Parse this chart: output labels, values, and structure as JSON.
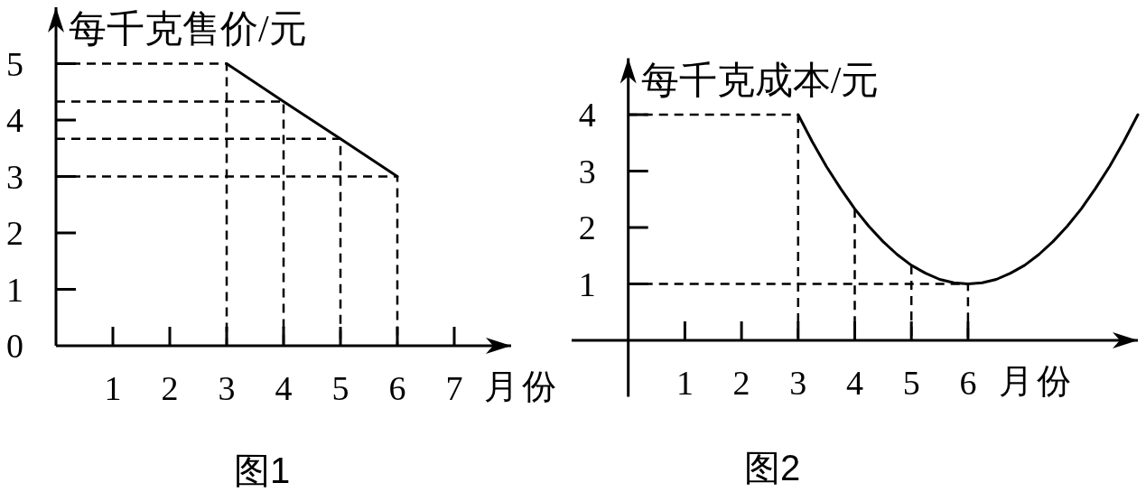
{
  "chart_data": [
    {
      "type": "line",
      "ylabel": "每千克售价/元",
      "xlabel": "月份",
      "annotations": [
        "图1"
      ],
      "xlim": [
        0,
        8
      ],
      "ylim": [
        0,
        6
      ],
      "xticks": [
        1,
        2,
        3,
        4,
        5,
        6,
        7
      ],
      "yticks": [
        0,
        1,
        2,
        3,
        4,
        5
      ],
      "series": [
        {
          "color": "#000000",
          "x": [
            3,
            4,
            5,
            6
          ],
          "values": [
            5,
            4.33,
            3.67,
            3
          ]
        },
        {
          "color": "#000000",
          "line_style": "dashed",
          "x": [
            0,
            3,
            3
          ],
          "values": [
            5,
            5,
            0
          ]
        },
        {
          "color": "#000000",
          "line_style": "dashed",
          "x": [
            0,
            4,
            4
          ],
          "values": [
            4.33,
            4.33,
            0
          ]
        },
        {
          "color": "#000000",
          "line_style": "dashed",
          "x": [
            0,
            5,
            5
          ],
          "values": [
            3.67,
            3.67,
            0
          ]
        },
        {
          "color": "#000000",
          "line_style": "dashed",
          "x": [
            0,
            6,
            6
          ],
          "values": [
            3,
            3,
            0
          ]
        }
      ]
    },
    {
      "type": "line",
      "ylabel": "每千克成本/元",
      "xlabel": "月份",
      "annotations": [
        "图2"
      ],
      "xlim": [
        -1,
        9
      ],
      "ylim": [
        -1,
        5
      ],
      "xticks": [
        1,
        2,
        3,
        4,
        5,
        6
      ],
      "yticks": [
        1,
        2,
        3,
        4
      ],
      "series": [
        {
          "color": "#000000",
          "x": [
            3,
            3.25,
            3.5,
            3.75,
            4,
            4.25,
            4.5,
            4.75,
            5,
            5.25,
            5.5,
            5.75,
            6,
            6.25,
            6.5,
            6.75,
            7,
            7.25,
            7.5,
            7.75,
            8,
            8.25,
            8.5,
            8.75,
            9
          ],
          "values": [
            4,
            3.52,
            3.08,
            2.69,
            2.33,
            2.02,
            1.75,
            1.52,
            1.33,
            1.19,
            1.08,
            1.02,
            1,
            1.02,
            1.08,
            1.19,
            1.33,
            1.52,
            1.75,
            2.02,
            2.33,
            2.69,
            3.08,
            3.52,
            4
          ]
        },
        {
          "color": "#000000",
          "line_style": "dashed",
          "x": [
            0,
            3,
            3
          ],
          "values": [
            4,
            4,
            0
          ]
        },
        {
          "color": "#000000",
          "line_style": "dashed",
          "x": [
            4,
            4
          ],
          "values": [
            2.33,
            0
          ]
        },
        {
          "color": "#000000",
          "line_style": "dashed",
          "x": [
            5,
            5
          ],
          "values": [
            1.33,
            0
          ]
        },
        {
          "color": "#000000",
          "line_style": "dashed",
          "x": [
            0,
            6,
            6
          ],
          "values": [
            1,
            1,
            0
          ]
        }
      ]
    }
  ]
}
